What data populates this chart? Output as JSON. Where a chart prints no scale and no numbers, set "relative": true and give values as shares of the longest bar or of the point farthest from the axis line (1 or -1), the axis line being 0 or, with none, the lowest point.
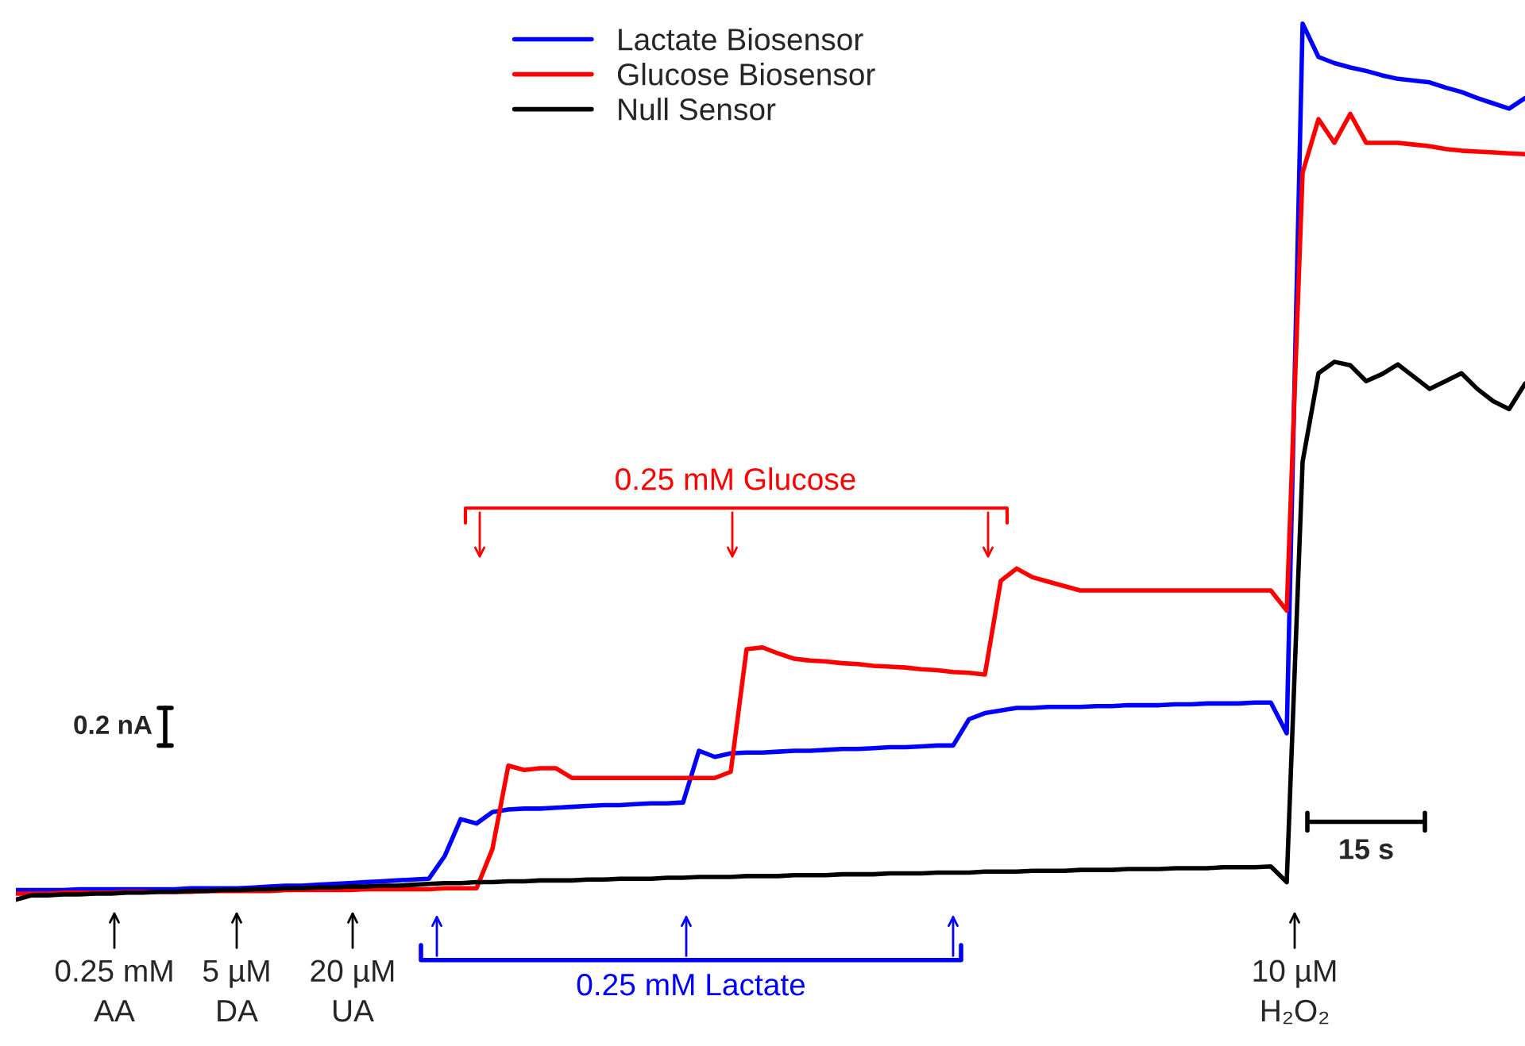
{
  "chart_data": {
    "type": "line",
    "relative": true,
    "legend": "top",
    "categories": [
      null,
      null,
      null,
      null,
      null,
      null,
      null,
      null,
      null,
      null,
      null,
      null,
      null,
      null,
      null,
      null,
      null,
      null,
      null,
      null,
      null,
      null,
      null,
      null,
      null,
      null,
      null,
      null,
      null,
      null,
      null,
      null,
      null,
      null,
      null,
      null,
      null,
      null,
      null,
      null,
      null,
      null,
      null,
      null,
      null,
      null,
      null,
      null,
      null,
      null,
      null,
      null,
      null,
      null,
      null,
      null,
      null,
      null,
      null,
      null,
      null,
      null,
      null,
      null,
      null,
      null,
      null,
      null,
      null,
      null,
      null,
      null,
      null,
      null,
      null,
      null,
      null,
      null,
      null,
      null,
      null,
      null,
      null,
      null,
      null,
      null,
      null,
      null,
      null,
      null,
      null,
      null,
      null,
      null,
      null,
      null
    ],
    "series": [
      {
        "name": "Lactate Biosensor",
        "color": "#0000ff",
        "values": [
          0.011,
          0.011,
          0.011,
          0.011,
          0.012,
          0.012,
          0.012,
          0.012,
          0.012,
          0.012,
          0.012,
          0.013,
          0.013,
          0.013,
          0.013,
          0.014,
          0.015,
          0.016,
          0.016,
          0.017,
          0.018,
          0.019,
          0.02,
          0.021,
          0.022,
          0.023,
          0.024,
          0.05,
          0.092,
          0.087,
          0.1,
          0.103,
          0.104,
          0.104,
          0.105,
          0.106,
          0.107,
          0.108,
          0.108,
          0.109,
          0.11,
          0.11,
          0.111,
          0.17,
          0.163,
          0.167,
          0.168,
          0.168,
          0.169,
          0.17,
          0.17,
          0.171,
          0.172,
          0.172,
          0.173,
          0.174,
          0.174,
          0.175,
          0.176,
          0.176,
          0.206,
          0.213,
          0.216,
          0.219,
          0.219,
          0.22,
          0.22,
          0.22,
          0.221,
          0.221,
          0.222,
          0.222,
          0.222,
          0.223,
          0.223,
          0.224,
          0.224,
          0.224,
          0.225,
          0.225,
          0.19,
          1.0,
          0.962,
          0.955,
          0.95,
          0.946,
          0.941,
          0.937,
          0.935,
          0.933,
          0.927,
          0.922,
          0.915,
          0.909,
          0.903,
          0.915
        ]
      },
      {
        "name": "Glucose Biosensor",
        "color": "#ff0000",
        "values": [
          0.007,
          0.007,
          0.007,
          0.008,
          0.008,
          0.008,
          0.008,
          0.009,
          0.009,
          0.009,
          0.009,
          0.009,
          0.01,
          0.01,
          0.01,
          0.01,
          0.01,
          0.011,
          0.011,
          0.011,
          0.011,
          0.011,
          0.012,
          0.012,
          0.012,
          0.012,
          0.012,
          0.013,
          0.013,
          0.013,
          0.058,
          0.153,
          0.148,
          0.15,
          0.15,
          0.139,
          0.139,
          0.139,
          0.139,
          0.139,
          0.139,
          0.139,
          0.139,
          0.139,
          0.139,
          0.146,
          0.286,
          0.288,
          0.281,
          0.275,
          0.273,
          0.272,
          0.27,
          0.269,
          0.267,
          0.266,
          0.265,
          0.263,
          0.262,
          0.26,
          0.259,
          0.257,
          0.364,
          0.378,
          0.368,
          0.363,
          0.358,
          0.353,
          0.353,
          0.353,
          0.353,
          0.353,
          0.353,
          0.353,
          0.353,
          0.353,
          0.353,
          0.353,
          0.353,
          0.353,
          0.33,
          0.83,
          0.891,
          0.864,
          0.897,
          0.864,
          0.864,
          0.864,
          0.862,
          0.86,
          0.857,
          0.855,
          0.854,
          0.853,
          0.852,
          0.851
        ]
      },
      {
        "name": "Null Sensor",
        "color": "#000000",
        "values": [
          0.0,
          0.005,
          0.005,
          0.006,
          0.006,
          0.007,
          0.007,
          0.008,
          0.008,
          0.009,
          0.009,
          0.01,
          0.01,
          0.011,
          0.011,
          0.012,
          0.012,
          0.013,
          0.013,
          0.014,
          0.014,
          0.015,
          0.015,
          0.016,
          0.016,
          0.017,
          0.018,
          0.019,
          0.019,
          0.02,
          0.02,
          0.021,
          0.021,
          0.022,
          0.022,
          0.022,
          0.023,
          0.023,
          0.024,
          0.024,
          0.024,
          0.025,
          0.025,
          0.026,
          0.026,
          0.026,
          0.027,
          0.027,
          0.027,
          0.028,
          0.028,
          0.028,
          0.029,
          0.029,
          0.029,
          0.03,
          0.03,
          0.03,
          0.031,
          0.031,
          0.031,
          0.032,
          0.032,
          0.032,
          0.033,
          0.033,
          0.033,
          0.034,
          0.034,
          0.034,
          0.035,
          0.035,
          0.035,
          0.036,
          0.036,
          0.036,
          0.037,
          0.037,
          0.037,
          0.038,
          0.02,
          0.5,
          0.601,
          0.614,
          0.61,
          0.592,
          0.6,
          0.611,
          0.597,
          0.583,
          0.592,
          0.601,
          0.583,
          0.569,
          0.56,
          0.589
        ]
      }
    ],
    "annotations": [
      "0.25 mM Glucose",
      "0.25 mM Lactate",
      "0.2 nA",
      "15 s",
      "0.25 mM\nAA",
      "5 µM\nDA",
      "20 µM\nUA",
      "10 µM\nH₂O₂"
    ]
  }
}
